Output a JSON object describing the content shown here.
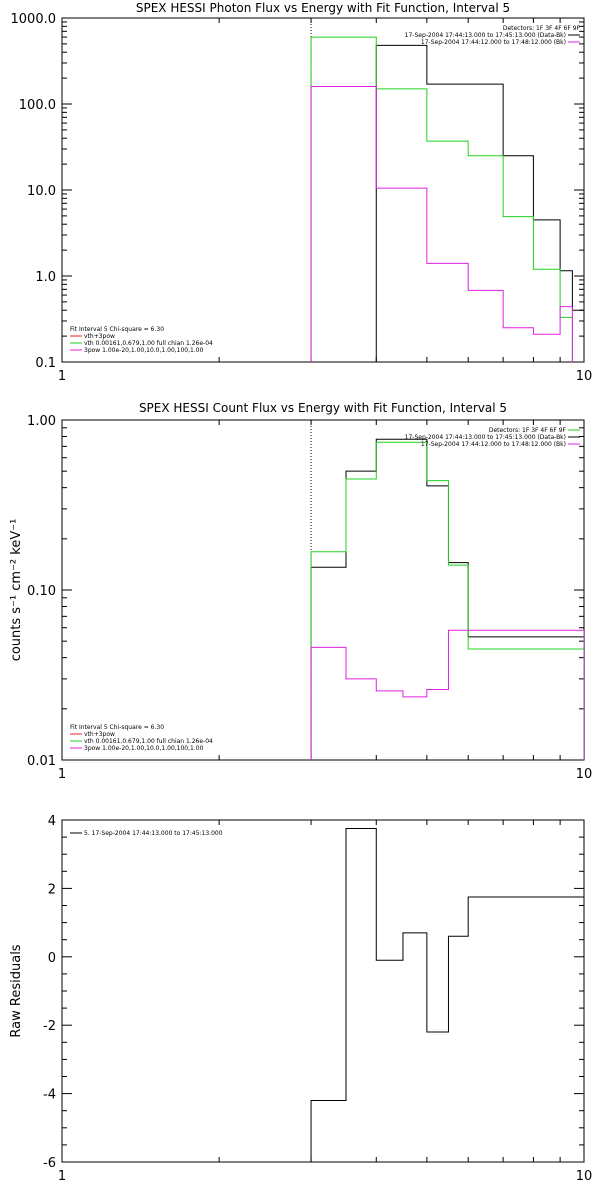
{
  "chart_data": [
    {
      "type": "line",
      "title": "SPEX HESSI Photon Flux vs Energy with Fit Function, Interval 5",
      "xscale": "log",
      "yscale": "log",
      "xlim": [
        1,
        10
      ],
      "ylim": [
        0.1,
        1000
      ],
      "xticks": [
        {
          "v": 1,
          "label": "1"
        },
        {
          "v": 10,
          "label": "10"
        }
      ],
      "yticks": [
        {
          "v": 1000,
          "label": "1000.0"
        },
        {
          "v": 100,
          "label": "100.0"
        },
        {
          "v": 10,
          "label": "10.0"
        },
        {
          "v": 1,
          "label": "1.0"
        },
        {
          "v": 0.1,
          "label": "0.1"
        }
      ],
      "ylabel": "",
      "vline": 3,
      "legend": {
        "placement": "top-right",
        "lines": [
          {
            "text": "Detectors: 1F 3F 4F 6F 9F",
            "color": ""
          },
          {
            "text": "17-Sep-2004 17:44:13.000 to 17:45:13.000 (Data-Bk)",
            "color": "#000000"
          },
          {
            "text": "17-Sep-2004 17:44:12.000 to 17:48:12.000 (Bk)",
            "color": "#e020e0"
          }
        ]
      },
      "fit_legend": {
        "placement": "bottom-left",
        "lines": [
          {
            "text": "Fit Interval 5   Chi-square = 6.30",
            "color": ""
          },
          {
            "text": "vth+3pow",
            "color": "#e82020"
          },
          {
            "text": "vth 0.00161,0.679,1.00   full chian 1.26e-04",
            "color": "#20d020"
          },
          {
            "text": "3pow 1.00e-20,1.00,10.0,1.00,100,1.00",
            "color": "#e020e0"
          }
        ]
      },
      "edges": [
        3,
        3.5,
        4,
        4.5,
        5,
        5.5,
        6,
        6.5,
        7,
        7.5,
        8,
        8.5,
        9,
        9.5,
        10
      ],
      "series": [
        {
          "color": "#000000",
          "values": [
            null,
            null,
            480,
            null,
            170,
            null,
            null,
            null,
            25,
            null,
            4.5,
            null,
            1.15,
            0.4
          ]
        },
        {
          "color": "#20d020",
          "values": [
            600,
            null,
            150,
            null,
            37,
            null,
            25,
            null,
            4.9,
            null,
            1.2,
            null,
            0.33
          ]
        },
        {
          "color": "#e020e0",
          "values": [
            160,
            null,
            10.5,
            null,
            1.4,
            null,
            0.68,
            null,
            0.25,
            null,
            0.21,
            null,
            0.44
          ]
        }
      ]
    },
    {
      "type": "line",
      "title": "SPEX HESSI Count Flux vs Energy with Fit Function, Interval 5",
      "xscale": "log",
      "yscale": "log",
      "xlim": [
        1,
        10
      ],
      "ylim": [
        0.01,
        1
      ],
      "xticks": [
        {
          "v": 1,
          "label": "1"
        },
        {
          "v": 10,
          "label": "10"
        }
      ],
      "yticks": [
        {
          "v": 1,
          "label": "1.00"
        },
        {
          "v": 0.1,
          "label": "0.10"
        },
        {
          "v": 0.01,
          "label": "0.01"
        }
      ],
      "ylabel": "counts s⁻¹ cm⁻² keV⁻¹",
      "vline": 3,
      "legend": {
        "placement": "top-right",
        "lines": [
          {
            "text": "Detectors: 1F 3F 4F 6F 9F",
            "color": "#20d020"
          },
          {
            "text": "17-Sep-2004 17:44:13.000 to 17:45:13.000 (Data-Bk)",
            "color": "#000000"
          },
          {
            "text": "17-Sep-2004 17:44:12.000 to 17:48:12.000 (Bk)",
            "color": "#e020e0"
          }
        ]
      },
      "fit_legend": {
        "placement": "bottom-left",
        "lines": [
          {
            "text": "Fit Interval 5   Chi-square = 6.30",
            "color": ""
          },
          {
            "text": "vth+3pow",
            "color": "#e82020"
          },
          {
            "text": "vth 0.00161,0.679,1.00   full chian 1.26e-04",
            "color": "#20d020"
          },
          {
            "text": "3pow 1.00e-20,1.00,10.0,1.00,100,1.00",
            "color": "#e020e0"
          }
        ]
      },
      "edges": [
        3,
        3.5,
        4,
        4.5,
        5,
        5.5,
        6,
        6.5,
        7,
        7.5,
        8,
        8.5,
        9,
        9.5,
        10
      ],
      "series": [
        {
          "color": "#000000",
          "values": [
            0.136,
            0.5,
            0.77,
            0.77,
            0.41,
            0.145,
            0.053
          ]
        },
        {
          "color": "#20d020",
          "values": [
            0.168,
            0.45,
            0.74,
            0.74,
            0.44,
            0.14,
            0.045
          ]
        },
        {
          "color": "#e020e0",
          "values": [
            0.046,
            0.03,
            0.0255,
            0.0235,
            0.026,
            0.058
          ]
        }
      ]
    },
    {
      "type": "line",
      "title": "",
      "xscale": "log",
      "yscale": "linear",
      "xlim": [
        1,
        10
      ],
      "ylim": [
        -6,
        4
      ],
      "xticks": [
        {
          "v": 1,
          "label": "1"
        },
        {
          "v": 10,
          "label": "10"
        }
      ],
      "yticks": [
        {
          "v": 4,
          "label": "4"
        },
        {
          "v": 2,
          "label": "2"
        },
        {
          "v": 0,
          "label": "0"
        },
        {
          "v": -2,
          "label": "-2"
        },
        {
          "v": -4,
          "label": "-4"
        },
        {
          "v": -6,
          "label": "-6"
        }
      ],
      "ylabel": "Raw Residuals",
      "legend": {
        "placement": "top-left",
        "lines": [
          {
            "text": "5. 17-Sep-2004 17:44:13.000 to 17:45:13.000",
            "color": "#000000"
          }
        ]
      },
      "edges": [
        3,
        3.5,
        4,
        4.5,
        5,
        5.5,
        6,
        6.5,
        7,
        7.5,
        8,
        8.5,
        9,
        9.5,
        10
      ],
      "series": [
        {
          "color": "#000000",
          "values": [
            -4.2,
            3.75,
            -0.1,
            0.7,
            -2.2,
            0.6,
            1.75
          ]
        }
      ]
    }
  ]
}
